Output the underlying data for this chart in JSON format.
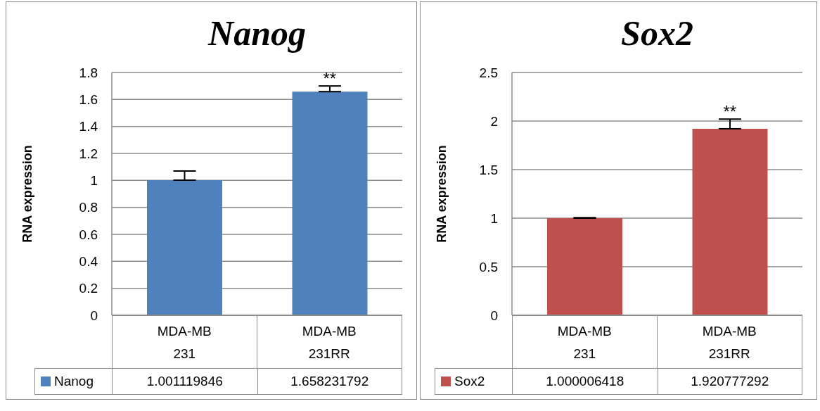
{
  "chart_data": [
    {
      "type": "bar",
      "title": "Nanog",
      "ylabel": "RNA expression",
      "categories": [
        "MDA-MB 231",
        "MDA-MB 231RR"
      ],
      "series": [
        {
          "name": "Nanog",
          "color": "#4f81bd",
          "values": [
            1.001119846,
            1.658231792
          ],
          "errors": [
            [
              1.001119846,
              1.07
            ],
            [
              1.658231792,
              1.7
            ]
          ]
        }
      ],
      "ylim": [
        0,
        1.8
      ],
      "yticks": [
        0,
        0.2,
        0.4,
        0.6,
        0.8,
        1,
        1.2,
        1.4,
        1.6,
        1.8
      ],
      "grid": "y",
      "data_labels": true,
      "legend": "bottom",
      "annotations": [
        {
          "text": "**",
          "x": "MDA-MB 231RR",
          "y": 1.7
        }
      ]
    },
    {
      "type": "bar",
      "title": "Sox2",
      "ylabel": "RNA expression",
      "categories": [
        "MDA-MB 231",
        "MDA-MB 231RR"
      ],
      "series": [
        {
          "name": "Sox2",
          "color": "#c0504d",
          "values": [
            1.000006418,
            1.920777292
          ],
          "errors": [
            [
              1.000006418,
              1.005
            ],
            [
              1.920777292,
              2.02
            ]
          ]
        }
      ],
      "ylim": [
        0,
        2.5
      ],
      "yticks": [
        0,
        0.5,
        1,
        1.5,
        2,
        2.5
      ],
      "grid": "y",
      "data_labels": true,
      "legend": "bottom",
      "annotations": [
        {
          "text": "**",
          "x": "MDA-MB 231RR",
          "y": 2.02
        }
      ]
    }
  ]
}
